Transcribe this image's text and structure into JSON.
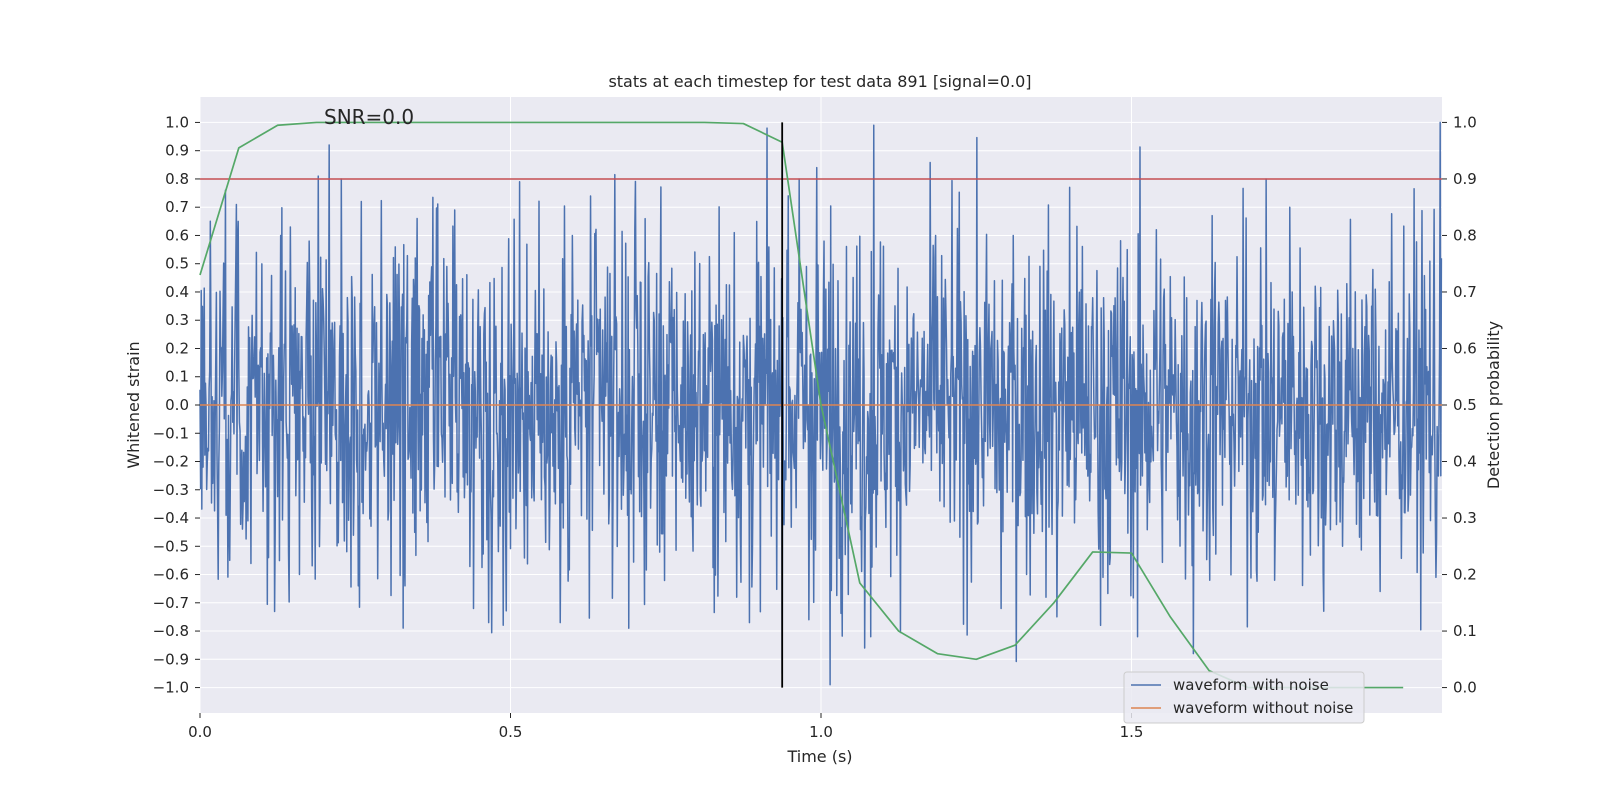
{
  "chart_data": {
    "type": "line",
    "title": "stats at each timestep for test data 891 [signal=0.0]",
    "xlabel": "Time (s)",
    "ylabel_left": "Whitened strain",
    "ylabel_right": "Detection probability",
    "xlim": [
      0.0,
      2.0
    ],
    "ylim_left": [
      -1.09,
      1.09
    ],
    "ylim_right": [
      -0.045,
      1.045
    ],
    "grid": true,
    "legend_position": "bottom-right",
    "x_ticks": [
      0.0,
      0.5,
      1.0,
      1.5
    ],
    "x_tick_labels": [
      "0.0",
      "0.5",
      "1.0",
      "1.5"
    ],
    "y_left_ticks": [
      1.0,
      0.9,
      0.8,
      0.7,
      0.6,
      0.5,
      0.4,
      0.3,
      0.2,
      0.1,
      0.0,
      -0.1,
      -0.2,
      -0.3,
      -0.4,
      -0.5,
      -0.6,
      -0.7,
      -0.8,
      -0.9,
      -1.0
    ],
    "y_left_tick_labels": [
      "1.0",
      "0.9",
      "0.8",
      "0.7",
      "0.6",
      "0.5",
      "0.4",
      "0.3",
      "0.2",
      "0.1",
      "0.0",
      "−0.1",
      "−0.2",
      "−0.3",
      "−0.4",
      "−0.5",
      "−0.6",
      "−0.7",
      "−0.8",
      "−0.9",
      "−1.0"
    ],
    "y_right_ticks": [
      1.0,
      0.9,
      0.8,
      0.7,
      0.6,
      0.5,
      0.4,
      0.3,
      0.2,
      0.1,
      0.0
    ],
    "y_right_tick_labels": [
      "1.0",
      "0.9",
      "0.8",
      "0.7",
      "0.6",
      "0.5",
      "0.4",
      "0.3",
      "0.2",
      "0.1",
      "0.0"
    ],
    "annotation": "SNR=0.0",
    "annotation_at": {
      "x": 0.2,
      "y": 1.02
    },
    "threshold": {
      "axis": "right",
      "value": 0.9,
      "color": "#c44e52"
    },
    "marker_time": {
      "x": 0.9375,
      "color": "#000000"
    },
    "series": [
      {
        "name": "waveform with noise",
        "axis": "left",
        "color": "#4c72b0",
        "kind": "noise",
        "sample_count": 2048,
        "x_range": [
          0.0,
          2.0
        ],
        "approx_std": 0.3,
        "clip": [
          -1.0,
          1.0
        ]
      },
      {
        "name": "waveform without noise",
        "axis": "left",
        "color": "#dd8452",
        "kind": "constant",
        "value": 0.0
      },
      {
        "name": "Detection probability",
        "axis": "right",
        "color": "#55a868",
        "kind": "line",
        "x": [
          0.0,
          0.0625,
          0.125,
          0.1875,
          0.25,
          0.3125,
          0.375,
          0.4375,
          0.5,
          0.5625,
          0.625,
          0.6875,
          0.75,
          0.8125,
          0.875,
          0.9375,
          1.0,
          1.0625,
          1.125,
          1.1875,
          1.25,
          1.3125,
          1.375,
          1.4375,
          1.5,
          1.5625,
          1.625,
          1.6875,
          1.75,
          1.8125,
          1.875,
          1.9375
        ],
        "y": [
          0.73,
          0.955,
          0.995,
          1.0,
          1.0,
          1.0,
          1.0,
          1.0,
          1.0,
          1.0,
          1.0,
          1.0,
          1.0,
          1.0,
          0.998,
          0.965,
          0.5,
          0.185,
          0.1,
          0.06,
          0.05,
          0.075,
          0.15,
          0.24,
          0.238,
          0.125,
          0.03,
          0.0,
          0.0,
          0.0,
          0.0,
          0.0
        ]
      }
    ],
    "spikes": [
      {
        "x": 0.005,
        "y": 0.5
      },
      {
        "x": 0.062,
        "y": 0.65
      },
      {
        "x": 0.13,
        "y": 0.6
      },
      {
        "x": 0.19,
        "y": 0.81
      },
      {
        "x": 0.208,
        "y": 0.92
      },
      {
        "x": 0.228,
        "y": 0.8
      },
      {
        "x": 0.26,
        "y": 0.72
      },
      {
        "x": 0.35,
        "y": 0.66
      },
      {
        "x": 0.41,
        "y": 0.69
      },
      {
        "x": 0.515,
        "y": 0.79
      },
      {
        "x": 0.6,
        "y": 0.6
      },
      {
        "x": 0.7,
        "y": 0.62
      },
      {
        "x": 0.86,
        "y": 0.61
      },
      {
        "x": 0.913,
        "y": 0.98
      },
      {
        "x": 0.947,
        "y": 0.74
      },
      {
        "x": 0.965,
        "y": 0.8
      },
      {
        "x": 0.993,
        "y": 0.84
      },
      {
        "x": 1.085,
        "y": 0.99
      },
      {
        "x": 1.185,
        "y": 0.6
      },
      {
        "x": 1.31,
        "y": 0.6
      },
      {
        "x": 1.4,
        "y": 0.77
      },
      {
        "x": 1.54,
        "y": 0.62
      },
      {
        "x": 1.63,
        "y": 0.67
      },
      {
        "x": 1.755,
        "y": 0.7
      },
      {
        "x": 1.9,
        "y": 0.62
      },
      {
        "x": 1.997,
        "y": 1.0
      },
      {
        "x": 0.005,
        "y": -0.22
      },
      {
        "x": 0.048,
        "y": -0.55
      },
      {
        "x": 0.11,
        "y": -0.54
      },
      {
        "x": 0.16,
        "y": -0.6
      },
      {
        "x": 0.255,
        "y": -0.64
      },
      {
        "x": 0.33,
        "y": -0.64
      },
      {
        "x": 0.44,
        "y": -0.72
      },
      {
        "x": 0.465,
        "y": -0.77
      },
      {
        "x": 0.58,
        "y": -0.77
      },
      {
        "x": 0.69,
        "y": -0.79
      },
      {
        "x": 0.885,
        "y": -0.77
      },
      {
        "x": 0.98,
        "y": -0.76
      },
      {
        "x": 1.015,
        "y": -0.99
      },
      {
        "x": 1.07,
        "y": -0.86
      },
      {
        "x": 1.08,
        "y": -0.82
      },
      {
        "x": 1.29,
        "y": -0.72
      },
      {
        "x": 1.38,
        "y": -0.75
      },
      {
        "x": 1.45,
        "y": -0.78
      },
      {
        "x": 1.51,
        "y": -0.82
      },
      {
        "x": 1.6,
        "y": -0.88
      },
      {
        "x": 1.73,
        "y": -0.62
      },
      {
        "x": 1.81,
        "y": -0.73
      },
      {
        "x": 1.9,
        "y": -0.66
      },
      {
        "x": 1.99,
        "y": -0.61
      }
    ],
    "legend": [
      {
        "label": "waveform with noise",
        "color": "#4c72b0"
      },
      {
        "label": "waveform without noise",
        "color": "#dd8452"
      }
    ],
    "colors": {
      "plot_background": "#eaeaf2",
      "grid": "#ffffff",
      "legend_background": "#eaeaf2",
      "legend_border": "#cccccc"
    }
  }
}
